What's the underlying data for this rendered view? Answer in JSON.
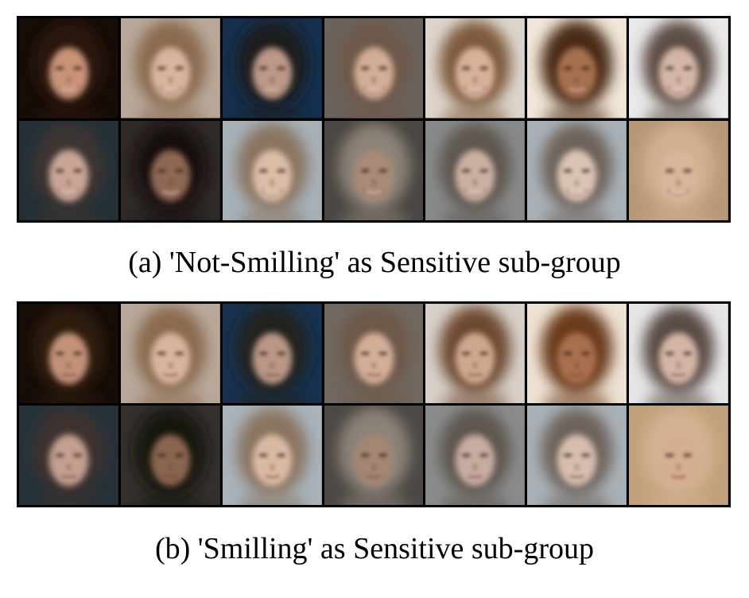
{
  "panel_a": {
    "caption": "(a) 'Not-Smilling' as Sensitive sub-group",
    "rows": [
      [
        {
          "bg": "#160d08",
          "hair": "#2a170d",
          "skin": "#c89376"
        },
        {
          "bg": "#b8a89a",
          "hair": "#8a6a50",
          "skin": "#d7b49e"
        },
        {
          "bg": "#15304f",
          "hair": "#1d1b1c",
          "skin": "#bb9887"
        },
        {
          "bg": "#6a625c",
          "hair": "#6e5848",
          "skin": "#d2ad97"
        },
        {
          "bg": "#ddd5cc",
          "hair": "#7e5a3d",
          "skin": "#d8b19a"
        },
        {
          "bg": "#f1e6d9",
          "hair": "#4a2b18",
          "skin": "#a6704f"
        },
        {
          "bg": "#e9e9ea",
          "hair": "#5d4e45",
          "skin": "#d4b6a6"
        }
      ],
      [
        {
          "bg": "#243038",
          "hair": "#3e3532",
          "skin": "#c9a595"
        },
        {
          "bg": "#2f2a28",
          "hair": "#140e0c",
          "skin": "#8e6852"
        },
        {
          "bg": "#a6b1b9",
          "hair": "#8a7560",
          "skin": "#dbbca7"
        },
        {
          "bg": "#4b4643",
          "hair": "#8c8378",
          "skin": "#a98a76"
        },
        {
          "bg": "#888a8a",
          "hair": "#5e5650",
          "skin": "#cbb0a2"
        },
        {
          "bg": "#a9b1b7",
          "hair": "#6e645c",
          "skin": "#dac3b4"
        },
        {
          "bg": "#b89878",
          "hair": "#cfb08f",
          "skin": "#d9b59b"
        }
      ]
    ]
  },
  "panel_b": {
    "caption": "(b) 'Smilling' as Sensitive sub-group",
    "rows": [
      [
        {
          "bg": "#160d08",
          "hair": "#2e1a10",
          "skin": "#c39078"
        },
        {
          "bg": "#b8a89a",
          "hair": "#8a6a50",
          "skin": "#d7b49e"
        },
        {
          "bg": "#17314e",
          "hair": "#23201f",
          "skin": "#b99685"
        },
        {
          "bg": "#706860",
          "hair": "#6e5848",
          "skin": "#d2ae98"
        },
        {
          "bg": "#d8d0c8",
          "hair": "#6d4a30",
          "skin": "#cfa78f"
        },
        {
          "bg": "#eee2d4",
          "hair": "#6a3a1c",
          "skin": "#a86f4d"
        },
        {
          "bg": "#e6e6e8",
          "hair": "#5a4c44",
          "skin": "#d2b5a6"
        }
      ],
      [
        {
          "bg": "#26323a",
          "hair": "#3c322f",
          "skin": "#c29f90"
        },
        {
          "bg": "#33302e",
          "hair": "#181210",
          "skin": "#8a654f"
        },
        {
          "bg": "#a8b3bb",
          "hair": "#8a7560",
          "skin": "#d9b9a4"
        },
        {
          "bg": "#4d4845",
          "hair": "#8c8378",
          "skin": "#a48672"
        },
        {
          "bg": "#8a8c8c",
          "hair": "#5e5650",
          "skin": "#c7aca0"
        },
        {
          "bg": "#a9b1b7",
          "hair": "#6e645c",
          "skin": "#d6bdae"
        },
        {
          "bg": "#c2a07c",
          "hair": "#d2b292",
          "skin": "#d6ae92"
        }
      ]
    ]
  }
}
